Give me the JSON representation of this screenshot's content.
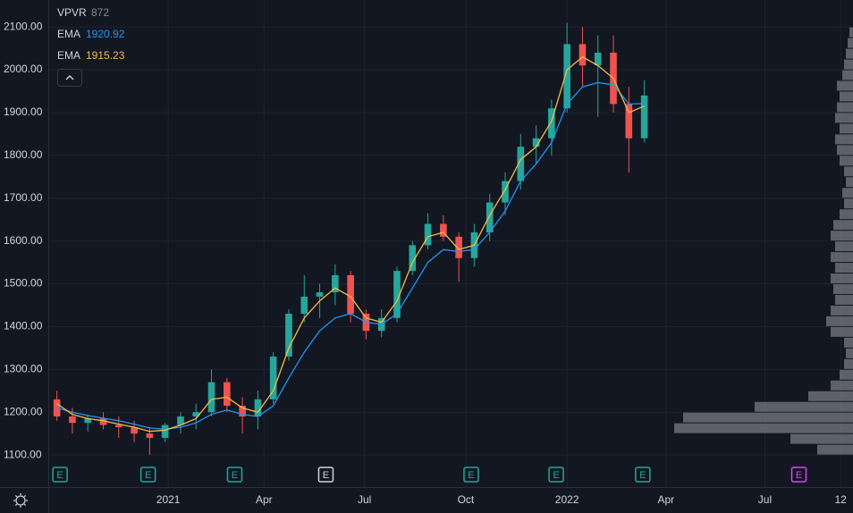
{
  "chart_data": {
    "type": "candlestick",
    "categories": [
      null,
      null,
      null,
      null,
      null,
      null,
      null,
      null,
      null,
      null,
      null,
      null,
      null,
      null,
      null,
      null,
      null,
      null,
      null,
      null,
      null,
      null,
      null,
      null,
      null,
      null,
      null,
      null,
      null,
      null,
      null,
      null,
      null,
      null,
      null,
      null,
      null,
      null,
      null
    ],
    "candles": {
      "up_color": "#26a69a",
      "down_color": "#ef5350",
      "open": [
        1230,
        1190,
        1175,
        1185,
        1170,
        1165,
        1150,
        1140,
        1170,
        1190,
        1200,
        1270,
        1215,
        1190,
        1230,
        1330,
        1430,
        1470,
        1480,
        1520,
        1430,
        1390,
        1420,
        1530,
        1590,
        1640,
        1610,
        1560,
        1620,
        1690,
        1740,
        1820,
        1840,
        1910,
        2060,
        2010,
        2040,
        1920,
        1840
      ],
      "high": [
        1250,
        1210,
        1195,
        1200,
        1190,
        1180,
        1165,
        1175,
        1200,
        1220,
        1300,
        1280,
        1235,
        1250,
        1340,
        1440,
        1520,
        1500,
        1545,
        1530,
        1440,
        1440,
        1540,
        1600,
        1665,
        1660,
        1620,
        1640,
        1710,
        1760,
        1850,
        1870,
        1930,
        2110,
        2100,
        2080,
        2080,
        1960,
        1975
      ],
      "low": [
        1180,
        1150,
        1155,
        1160,
        1140,
        1130,
        1100,
        1130,
        1150,
        1160,
        1190,
        1200,
        1150,
        1160,
        1220,
        1320,
        1410,
        1420,
        1450,
        1410,
        1370,
        1375,
        1410,
        1520,
        1580,
        1600,
        1505,
        1540,
        1600,
        1660,
        1720,
        1780,
        1800,
        1900,
        1960,
        1890,
        1900,
        1760,
        1830
      ],
      "close": [
        1190,
        1175,
        1185,
        1170,
        1165,
        1150,
        1140,
        1170,
        1190,
        1200,
        1270,
        1215,
        1190,
        1230,
        1330,
        1430,
        1470,
        1480,
        1520,
        1430,
        1390,
        1420,
        1530,
        1590,
        1640,
        1610,
        1560,
        1620,
        1690,
        1740,
        1820,
        1840,
        1910,
        2060,
        2010,
        2040,
        1920,
        1840,
        1940
      ]
    },
    "series": [
      {
        "name": "EMA",
        "color": "#2196f3",
        "values": [
          1210,
          1200,
          1192,
          1186,
          1180,
          1172,
          1163,
          1160,
          1165,
          1175,
          1195,
          1205,
          1195,
          1190,
          1215,
          1280,
          1340,
          1390,
          1420,
          1430,
          1410,
          1405,
          1430,
          1490,
          1550,
          1580,
          1575,
          1580,
          1620,
          1670,
          1740,
          1780,
          1830,
          1920,
          1960,
          1970,
          1965,
          1920,
          1920.92
        ]
      },
      {
        "name": "EMA",
        "color": "#f7b94a",
        "values": [
          1220,
          1195,
          1185,
          1180,
          1172,
          1165,
          1155,
          1158,
          1170,
          1185,
          1230,
          1235,
          1210,
          1200,
          1250,
          1350,
          1420,
          1460,
          1490,
          1470,
          1420,
          1410,
          1460,
          1550,
          1610,
          1620,
          1580,
          1590,
          1660,
          1720,
          1790,
          1820,
          1880,
          2000,
          2030,
          2010,
          1980,
          1900,
          1915.23
        ]
      }
    ],
    "volume_profile": {
      "name": "VPVR",
      "setting": 872,
      "color": "#787b86",
      "bins": [
        1100,
        1125,
        1150,
        1175,
        1200,
        1225,
        1250,
        1275,
        1300,
        1325,
        1350,
        1375,
        1400,
        1425,
        1450,
        1475,
        1500,
        1525,
        1550,
        1575,
        1600,
        1625,
        1650,
        1675,
        1700,
        1725,
        1750,
        1775,
        1800,
        1825,
        1850,
        1875,
        1900,
        1925,
        1950,
        1975,
        2000,
        2025,
        2050,
        2075,
        2100
      ],
      "values": [
        40,
        70,
        200,
        190,
        110,
        50,
        25,
        15,
        10,
        8,
        10,
        25,
        30,
        25,
        20,
        22,
        25,
        20,
        25,
        20,
        25,
        22,
        15,
        10,
        12,
        8,
        10,
        15,
        18,
        20,
        15,
        20,
        18,
        15,
        18,
        12,
        10,
        8,
        6,
        4
      ]
    },
    "events": [
      {
        "label": "E",
        "x": 0.2,
        "color": "#26a69a"
      },
      {
        "label": "E",
        "x": 5.9,
        "color": "#26a69a"
      },
      {
        "label": "E",
        "x": 11.5,
        "color": "#26a69a"
      },
      {
        "label": "E",
        "x": 17.4,
        "color": "#d1d4dc"
      },
      {
        "label": "E",
        "x": 26.8,
        "color": "#26a69a"
      },
      {
        "label": "E",
        "x": 32.3,
        "color": "#26a69a"
      },
      {
        "label": "E",
        "x": 37.9,
        "color": "#26a69a"
      },
      {
        "label": "E",
        "x": 48.0,
        "color": "#e040fb"
      }
    ],
    "xlim": [
      -0.5,
      51.5
    ],
    "xticks": [
      {
        "value": 7.2,
        "label": "2021"
      },
      {
        "value": 13.4,
        "label": "Apr"
      },
      {
        "value": 19.9,
        "label": "Jul"
      },
      {
        "value": 26.45,
        "label": "Oct"
      },
      {
        "value": 33.0,
        "label": "2022"
      },
      {
        "value": 39.4,
        "label": "Apr"
      },
      {
        "value": 45.8,
        "label": "Jul"
      },
      {
        "value": 50.7,
        "label": "12"
      }
    ],
    "ylim": [
      1025,
      2163
    ],
    "yticks": [
      {
        "value": 1100,
        "label": "1100.00"
      },
      {
        "value": 1200,
        "label": "1200.00"
      },
      {
        "value": 1300,
        "label": "1300.00"
      },
      {
        "value": 1400,
        "label": "1400.00"
      },
      {
        "value": 1500,
        "label": "1500.00"
      },
      {
        "value": 1600,
        "label": "1600.00"
      },
      {
        "value": 1700,
        "label": "1700.00"
      },
      {
        "value": 1800,
        "label": "1800.00"
      },
      {
        "value": 1900,
        "label": "1900.00"
      },
      {
        "value": 2000,
        "label": "2000.00"
      },
      {
        "value": 2100,
        "label": "2100.00"
      }
    ],
    "grid": true
  }
}
